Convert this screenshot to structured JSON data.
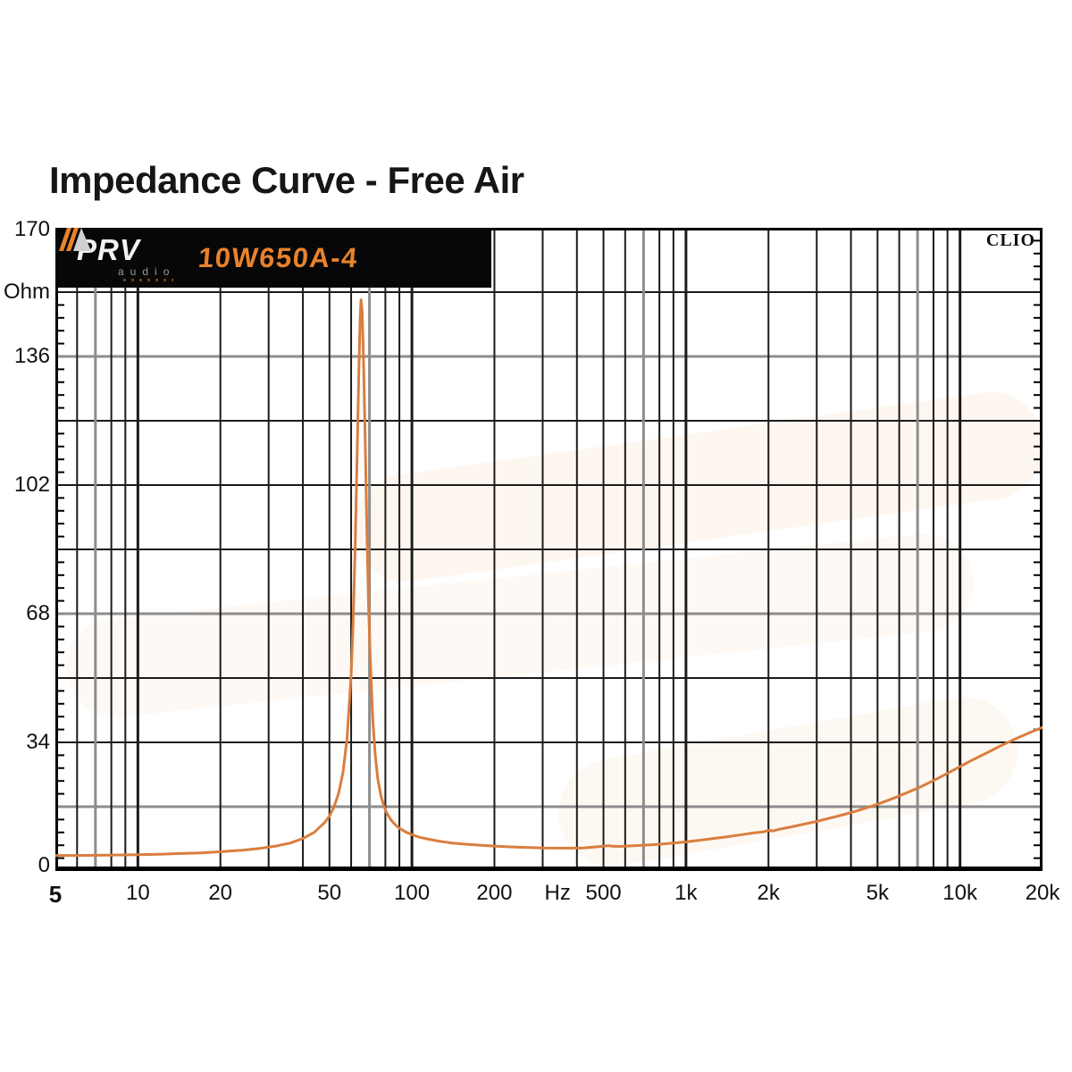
{
  "title": "Impedance Curve - Free Air",
  "banner": {
    "brand": "PRV",
    "brand_sub": "audio",
    "model": "10W650A-4"
  },
  "clio_label": "CLIO",
  "colors": {
    "curve": "#d97e3f",
    "grid_dark": "#1b1b1b",
    "grid_gray": "#8d8d8d",
    "border": "#000000",
    "banner_bg": "#070707",
    "model_orange": "#e8822c",
    "brand_white": "#f2f2f2",
    "brand_gray": "#9a9a9a"
  },
  "chart_data": {
    "type": "line",
    "title": "Impedance Curve - Free Air",
    "x_scale": "log",
    "x_range": [
      5,
      20000
    ],
    "xlabel": "Hz",
    "ylabel": "Ohm",
    "ylim": [
      0,
      170
    ],
    "grid": true,
    "legend": "none",
    "x_tick_labels": [
      {
        "text": "5",
        "f": 5,
        "bold": true
      },
      {
        "text": "10",
        "f": 10
      },
      {
        "text": "20",
        "f": 20
      },
      {
        "text": "50",
        "f": 50
      },
      {
        "text": "100",
        "f": 100
      },
      {
        "text": "200",
        "f": 200
      },
      {
        "text": "Hz",
        "f": 340
      },
      {
        "text": "500",
        "f": 500
      },
      {
        "text": "1k",
        "f": 1000
      },
      {
        "text": "2k",
        "f": 2000
      },
      {
        "text": "5k",
        "f": 5000
      },
      {
        "text": "10k",
        "f": 10000
      },
      {
        "text": "20k",
        "f": 20000
      }
    ],
    "y_tick_labels": [
      {
        "text": "170",
        "ohm": 170
      },
      {
        "text": "Ohm",
        "ohm": 153
      },
      {
        "text": "136",
        "ohm": 136
      },
      {
        "text": "102",
        "ohm": 102
      },
      {
        "text": "68",
        "ohm": 68
      },
      {
        "text": "34",
        "ohm": 34
      },
      {
        "text": "0",
        "ohm": 0
      }
    ],
    "h_gridlines": [
      {
        "ohm": 17,
        "tone": "gray"
      },
      {
        "ohm": 34,
        "tone": "dark"
      },
      {
        "ohm": 51,
        "tone": "dark"
      },
      {
        "ohm": 68,
        "tone": "gray"
      },
      {
        "ohm": 85,
        "tone": "dark"
      },
      {
        "ohm": 102,
        "tone": "dark"
      },
      {
        "ohm": 119,
        "tone": "dark"
      },
      {
        "ohm": 136,
        "tone": "gray"
      },
      {
        "ohm": 153,
        "tone": "dark"
      }
    ],
    "v_gridlines": {
      "decade": [
        10,
        100,
        1000,
        10000
      ],
      "gray": [
        7,
        70,
        700,
        7000
      ],
      "minor": [
        6,
        8,
        9,
        20,
        30,
        40,
        50,
        60,
        80,
        90,
        200,
        300,
        400,
        500,
        600,
        800,
        900,
        2000,
        3000,
        4000,
        5000,
        6000,
        8000,
        9000
      ]
    },
    "axis_tick_step_ohm": 3.4,
    "resonance_peak": {
      "f": 65,
      "ohm": 151
    },
    "series": [
      {
        "name": "Impedance",
        "points": [
          [
            5,
            4.1
          ],
          [
            6,
            4.1
          ],
          [
            7,
            4.15
          ],
          [
            8,
            4.2
          ],
          [
            9,
            4.25
          ],
          [
            10,
            4.3
          ],
          [
            12,
            4.45
          ],
          [
            14,
            4.6
          ],
          [
            17,
            4.8
          ],
          [
            20,
            5.1
          ],
          [
            24,
            5.5
          ],
          [
            28,
            6.0
          ],
          [
            32,
            6.6
          ],
          [
            36,
            7.4
          ],
          [
            40,
            8.6
          ],
          [
            44,
            10.2
          ],
          [
            48,
            12.8
          ],
          [
            50,
            14.5
          ],
          [
            52,
            17
          ],
          [
            54,
            20.5
          ],
          [
            56,
            26
          ],
          [
            58,
            35
          ],
          [
            60,
            52
          ],
          [
            61,
            66
          ],
          [
            62,
            84
          ],
          [
            63,
            108
          ],
          [
            64,
            132
          ],
          [
            64.7,
            146
          ],
          [
            65.2,
            151
          ],
          [
            65.8,
            148
          ],
          [
            66.5,
            136
          ],
          [
            67.5,
            114
          ],
          [
            68.5,
            90
          ],
          [
            69.5,
            70
          ],
          [
            70.5,
            56
          ],
          [
            72,
            40
          ],
          [
            73.5,
            30.5
          ],
          [
            75,
            24.5
          ],
          [
            77,
            20
          ],
          [
            79,
            17.2
          ],
          [
            81,
            15.3
          ],
          [
            84,
            13.4
          ],
          [
            87,
            12.2
          ],
          [
            90,
            11.3
          ],
          [
            95,
            10.3
          ],
          [
            100,
            9.6
          ],
          [
            107,
            8.9
          ],
          [
            115,
            8.4
          ],
          [
            125,
            7.9
          ],
          [
            140,
            7.4
          ],
          [
            155,
            7.1
          ],
          [
            170,
            6.9
          ],
          [
            190,
            6.65
          ],
          [
            210,
            6.5
          ],
          [
            240,
            6.3
          ],
          [
            270,
            6.2
          ],
          [
            300,
            6.1
          ],
          [
            340,
            6.05
          ],
          [
            380,
            6.05
          ],
          [
            420,
            6.1
          ],
          [
            460,
            6.3
          ],
          [
            500,
            6.55
          ],
          [
            520,
            6.7
          ],
          [
            540,
            6.55
          ],
          [
            570,
            6.5
          ],
          [
            620,
            6.6
          ],
          [
            680,
            6.75
          ],
          [
            750,
            6.95
          ],
          [
            820,
            7.15
          ],
          [
            900,
            7.4
          ],
          [
            1000,
            7.7
          ],
          [
            1100,
            8.05
          ],
          [
            1250,
            8.55
          ],
          [
            1400,
            9.0
          ],
          [
            1600,
            9.6
          ],
          [
            1800,
            10.15
          ],
          [
            1900,
            10.3
          ],
          [
            2000,
            10.75
          ],
          [
            2080,
            10.6
          ],
          [
            2200,
            11.05
          ],
          [
            2400,
            11.6
          ],
          [
            2700,
            12.4
          ],
          [
            3000,
            13.1
          ],
          [
            3400,
            14.1
          ],
          [
            3800,
            15.0
          ],
          [
            4200,
            15.9
          ],
          [
            4700,
            17.0
          ],
          [
            5200,
            18.1
          ],
          [
            5800,
            19.4
          ],
          [
            6500,
            20.9
          ],
          [
            7200,
            22.3
          ],
          [
            8000,
            23.9
          ],
          [
            9000,
            25.8
          ],
          [
            10000,
            27.6
          ],
          [
            11000,
            29.2
          ],
          [
            12500,
            31.2
          ],
          [
            14000,
            33.0
          ],
          [
            16000,
            35.0
          ],
          [
            18000,
            36.6
          ],
          [
            20000,
            38.0
          ]
        ]
      }
    ]
  }
}
